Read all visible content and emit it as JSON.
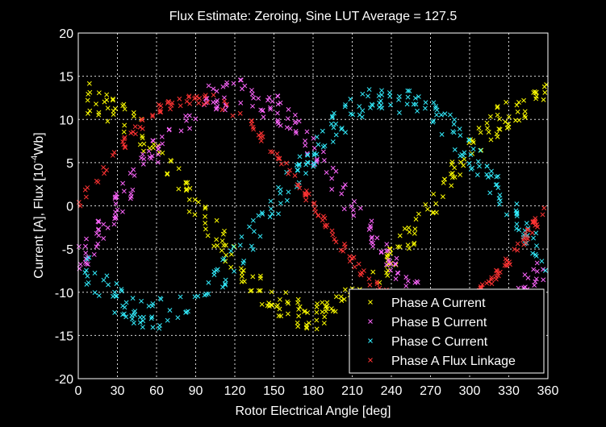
{
  "chart_data": {
    "type": "scatter",
    "title": "Flux Estimate: Zeroing, Sine LUT Average = 127.5",
    "xlabel": "Rotor Electrical Angle [deg]",
    "ylabel_prefix": "Current [A], Flux [10",
    "ylabel_exp": "-4",
    "ylabel_suffix": "Wb]",
    "xlim": [
      0,
      360
    ],
    "ylim": [
      -20,
      20
    ],
    "xticks": [
      0,
      30,
      60,
      90,
      120,
      150,
      180,
      210,
      240,
      270,
      300,
      330,
      360
    ],
    "yticks": [
      -20,
      -15,
      -10,
      -5,
      0,
      5,
      10,
      15,
      20
    ],
    "grid": true,
    "legend_position": "bottom-right",
    "marker": "x",
    "series": [
      {
        "name": "Phase A Current",
        "color": "#ffff00",
        "amplitude": 12.5,
        "phase_deg": 90,
        "noise": 1.8,
        "n": 260
      },
      {
        "name": "Phase B Current",
        "color": "#ff66ff",
        "amplitude": 13.0,
        "phase_deg": -30,
        "noise": 1.8,
        "n": 260
      },
      {
        "name": "Phase C Current",
        "color": "#33eeff",
        "amplitude": 12.5,
        "phase_deg": 210,
        "noise": 1.8,
        "n": 260
      },
      {
        "name": "Phase A Flux Linkage",
        "color": "#ff3333",
        "amplitude": 12.5,
        "phase_deg": 0,
        "noise": 0.7,
        "n": 220
      }
    ]
  }
}
